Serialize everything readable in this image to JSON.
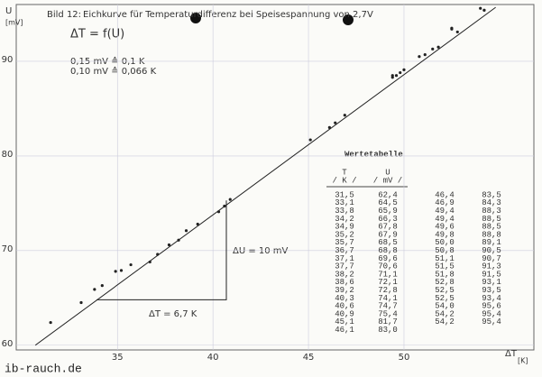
{
  "chart_data": {
    "type": "scatter",
    "title_prefix": "Bild 12:",
    "title": "Eichkurve für Temperaturdifferenz bei Speisespannung von 2,7V",
    "formula": "ΔT = f(U)",
    "notes": [
      "0,15 mV ≙ 0,1 K",
      "0,10 mV ≙ 0,066 K"
    ],
    "y_label": [
      "U",
      "[mV]"
    ],
    "x_label": [
      "ΔT",
      "[K]"
    ],
    "delta_u_label": "ΔU = 10 mV",
    "delta_t_label": "ΔT = 6,7 K",
    "xlim": [
      29.7,
      56.8
    ],
    "ylim": [
      59.5,
      96
    ],
    "xticks": [
      35,
      40,
      45,
      50
    ],
    "yticks": [
      60,
      70,
      80,
      90
    ],
    "grid": true,
    "color": "#222222",
    "x": [
      31.5,
      33.1,
      33.8,
      34.2,
      34.9,
      35.2,
      35.7,
      36.7,
      37.1,
      37.7,
      38.2,
      38.6,
      39.2,
      40.3,
      40.6,
      40.9,
      45.1,
      46.1,
      46.4,
      46.9,
      49.4,
      49.4,
      49.6,
      49.8,
      50.0,
      50.8,
      51.1,
      51.5,
      51.8,
      52.8,
      52.5,
      52.5,
      54.0,
      54.2,
      54.2
    ],
    "values": [
      62.4,
      64.5,
      65.9,
      66.3,
      67.8,
      67.9,
      68.5,
      68.8,
      69.6,
      70.6,
      71.1,
      72.1,
      72.8,
      74.1,
      74.7,
      75.4,
      81.7,
      83.0,
      83.5,
      84.3,
      88.3,
      88.5,
      88.5,
      88.8,
      89.1,
      90.5,
      90.7,
      91.3,
      91.5,
      93.1,
      93.5,
      93.4,
      95.6,
      95.4,
      95.4
    ],
    "fit_line": {
      "x": [
        30.7,
        54.8
      ],
      "y": [
        60,
        95.7
      ]
    },
    "slope_triangle": {
      "x": [
        33.9,
        40.7
      ],
      "y": [
        64.8,
        75.3
      ]
    }
  },
  "table": {
    "title": "Wertetabelle",
    "headers": [
      [
        "T",
        "/ K /"
      ],
      [
        "U",
        "/ mV /"
      ]
    ],
    "left_rows": [
      [
        "31,5",
        "62,4"
      ],
      [
        "33,1",
        "64,5"
      ],
      [
        "33,8",
        "65,9"
      ],
      [
        "34,2",
        "66,3"
      ],
      [
        "34,9",
        "67,8"
      ],
      [
        "35,2",
        "67,9"
      ],
      [
        "35,7",
        "68,5"
      ],
      [
        "36,7",
        "68,8"
      ],
      [
        "37,1",
        "69,6"
      ],
      [
        "37,7",
        "70,6"
      ],
      [
        "38,2",
        "71,1"
      ],
      [
        "38,6",
        "72,1"
      ],
      [
        "39,2",
        "72,8"
      ],
      [
        "40,3",
        "74,1"
      ],
      [
        "40,6",
        "74,7"
      ],
      [
        "40,9",
        "75,4"
      ],
      [
        "45,1",
        "81,7"
      ],
      [
        "46,1",
        "83,0"
      ]
    ],
    "right_rows": [
      [
        "46,4",
        "83,5"
      ],
      [
        "46,9",
        "84,3"
      ],
      [
        "49,4",
        "88,3"
      ],
      [
        "49,4",
        "88,5"
      ],
      [
        "49,6",
        "88,5"
      ],
      [
        "49,8",
        "88,8"
      ],
      [
        "50,0",
        "89,1"
      ],
      [
        "50,8",
        "90,5"
      ],
      [
        "51,1",
        "90,7"
      ],
      [
        "51,5",
        "91,3"
      ],
      [
        "51,8",
        "91,5"
      ],
      [
        "52,8",
        "93,1"
      ],
      [
        "52,5",
        "93,5"
      ],
      [
        "52,5",
        "93,4"
      ],
      [
        "54,0",
        "95,6"
      ],
      [
        "54,2",
        "95,4"
      ],
      [
        "54,2",
        "95,4"
      ]
    ]
  },
  "watermark": "ib-rauch.de"
}
